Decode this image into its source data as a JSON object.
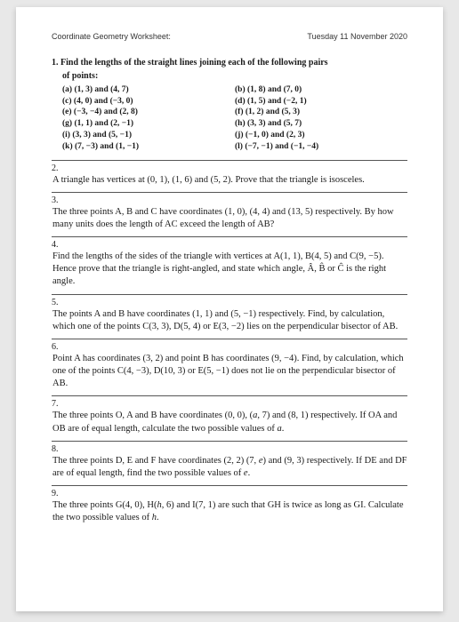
{
  "header": {
    "left": "Coordinate Geometry Worksheet:",
    "right": "Tuesday 11 November 2020"
  },
  "q1": {
    "title": "1. Find the lengths of the straight lines joining each of the following pairs",
    "sub": "of points:",
    "left": [
      "(a) (1, 3) and (4, 7)",
      "(c) (4, 0) and (−3, 0)",
      "(e) (−3, −4) and (2, 8)",
      "(g) (1, 1) and (2, −1)",
      "(i) (3, 3) and (5, −1)",
      "(k) (7, −3) and (1, −1)"
    ],
    "right": [
      "(b) (1, 8) and (7, 0)",
      "(d) (1, 5) and (−2, 1)",
      "(f) (1, 2) and (5, 3)",
      "(h) (3, 3) and (5, 7)",
      "(j) (−1, 0) and (2, 3)",
      "(l) (−7, −1) and (−1, −4)"
    ]
  },
  "q2": {
    "num": "2.",
    "body": "A triangle has vertices at (0, 1), (1, 6) and (5, 2). Prove that the triangle is isosceles."
  },
  "q3": {
    "num": "3.",
    "body": "The three points A, B and C have coordinates (1, 0), (4, 4) and (13, 5) respectively. By how many units does the length of AC exceed the length of AB?"
  },
  "q4": {
    "num": "4.",
    "body": "Find the lengths of the sides of the triangle with vertices at A(1, 1), B(4, 5) and C(9, −5). Hence prove that the triangle is right-angled, and state which angle, Â, B̂ or Ĉ is the right angle."
  },
  "q5": {
    "num": "5.",
    "body": "The points A and B have coordinates (1, 1) and (5, −1) respectively. Find, by calculation, which one of the points C(3, 3), D(5, 4) or E(3, −2) lies on the perpendicular bisector of AB."
  },
  "q6": {
    "num": "6.",
    "body": "Point A has coordinates (3, 2) and point B has coordinates (9, −4). Find, by calculation, which one of the points C(4, −3), D(10, 3) or E(5, −1) does not lie on the perpendicular bisector of AB."
  },
  "q7": {
    "num": "7.",
    "body1": "The three points O, A and B have coordinates (0, 0), (",
    "a": "a",
    "body2": ", 7) and (8, 1) respectively. If OA and OB are of equal length, calculate the two possible values of ",
    "body3": "."
  },
  "q8": {
    "num": "8.",
    "body1": "The three points D, E and F have coordinates (2, 2) (7, ",
    "e": "e",
    "body2": ") and (9, 3) respectively. If DE and DF are of equal length, find the two possible values of ",
    "body3": "."
  },
  "q9": {
    "num": "9.",
    "body1": "The three points G(4, 0), H(",
    "h": "h",
    "body2": ", 6) and I(7, 1) are such that GH is twice as long as GI. Calculate the two possible values of ",
    "body3": "."
  }
}
